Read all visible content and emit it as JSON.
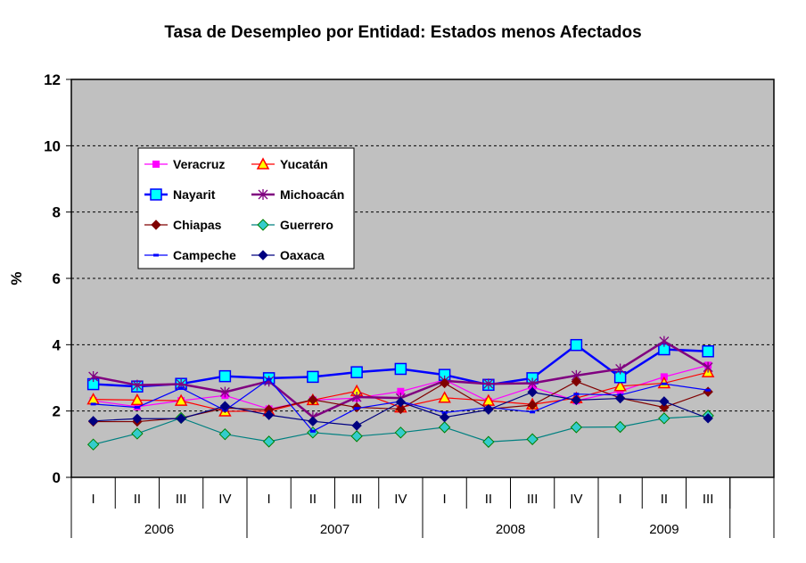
{
  "chart_data": {
    "type": "line",
    "title": "Tasa de Desempleo por Entidad: Estados menos Afectados",
    "xlabel": "",
    "ylabel": "%",
    "ylim": [
      0,
      12
    ],
    "yticks": [
      0,
      2,
      4,
      6,
      8,
      10,
      12
    ],
    "grid": "horizontal dashed",
    "legend_position": "upper-left inside plot",
    "quarters": [
      "I",
      "II",
      "III",
      "IV",
      "I",
      "II",
      "III",
      "IV",
      "I",
      "II",
      "III",
      "IV",
      "I",
      "II",
      "III"
    ],
    "years": [
      {
        "label": "2006",
        "quarters": 4
      },
      {
        "label": "2007",
        "quarters": 4
      },
      {
        "label": "2008",
        "quarters": 4
      },
      {
        "label": "2009",
        "quarters": 3
      }
    ],
    "series": [
      {
        "name": "Veracruz",
        "color": "#ff00ff",
        "marker": "square",
        "values": [
          2.31,
          2.13,
          2.31,
          2.47,
          2.06,
          2.33,
          2.39,
          2.59,
          2.94,
          2.29,
          2.72,
          2.31,
          2.6,
          3.03,
          3.38
        ]
      },
      {
        "name": "Yucatán",
        "color": "#ff0000",
        "marker": "triangle",
        "values": [
          2.35,
          2.33,
          2.31,
          1.99,
          2.0,
          2.33,
          2.6,
          2.11,
          2.4,
          2.31,
          2.2,
          2.39,
          2.75,
          2.84,
          3.17
        ]
      },
      {
        "name": "Nayarit",
        "color": "#0000ff",
        "marker": "big-square",
        "values": [
          2.81,
          2.74,
          2.82,
          3.05,
          2.99,
          3.03,
          3.17,
          3.27,
          3.09,
          2.79,
          2.99,
          3.99,
          3.02,
          3.86,
          3.8
        ]
      },
      {
        "name": "Michoacán",
        "color": "#800080",
        "marker": "star",
        "values": [
          3.04,
          2.78,
          2.81,
          2.57,
          2.9,
          1.82,
          2.42,
          2.39,
          2.91,
          2.82,
          2.84,
          3.07,
          3.27,
          4.1,
          3.32
        ]
      },
      {
        "name": "Chiapas",
        "color": "#800000",
        "marker": "diamond",
        "values": [
          1.68,
          1.68,
          1.79,
          2.09,
          2.04,
          2.34,
          2.11,
          2.06,
          2.84,
          2.06,
          2.18,
          2.89,
          2.39,
          2.11,
          2.58
        ]
      },
      {
        "name": "Guerrero",
        "color": "#008080",
        "marker": "big-diamond",
        "values": [
          0.99,
          1.32,
          1.79,
          1.3,
          1.08,
          1.35,
          1.24,
          1.35,
          1.51,
          1.07,
          1.15,
          1.51,
          1.52,
          1.78,
          1.86
        ]
      },
      {
        "name": "Campeche",
        "color": "#0000ff",
        "marker": "dash",
        "values": [
          2.21,
          2.11,
          2.69,
          2.02,
          2.96,
          1.39,
          2.08,
          2.29,
          1.95,
          2.11,
          1.97,
          2.51,
          2.48,
          2.82,
          2.63
        ]
      },
      {
        "name": "Oaxaca",
        "color": "#000080",
        "marker": "diamond",
        "values": [
          1.7,
          1.77,
          1.77,
          2.15,
          1.88,
          1.69,
          1.56,
          2.27,
          1.81,
          2.04,
          2.57,
          2.33,
          2.38,
          2.29,
          1.78
        ]
      }
    ]
  }
}
